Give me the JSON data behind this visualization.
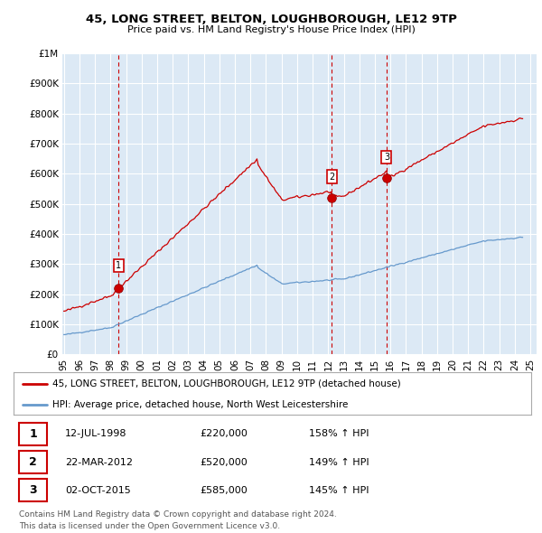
{
  "title1": "45, LONG STREET, BELTON, LOUGHBOROUGH, LE12 9TP",
  "title2": "Price paid vs. HM Land Registry's House Price Index (HPI)",
  "legend_label1": "45, LONG STREET, BELTON, LOUGHBOROUGH, LE12 9TP (detached house)",
  "legend_label2": "HPI: Average price, detached house, North West Leicestershire",
  "footer1": "Contains HM Land Registry data © Crown copyright and database right 2024.",
  "footer2": "This data is licensed under the Open Government Licence v3.0.",
  "transactions": [
    {
      "num": 1,
      "date": "12-JUL-1998",
      "price": 220000,
      "pct": "158%",
      "dir": "↑"
    },
    {
      "num": 2,
      "date": "22-MAR-2012",
      "price": 520000,
      "pct": "149%",
      "dir": "↑"
    },
    {
      "num": 3,
      "date": "02-OCT-2015",
      "price": 585000,
      "pct": "145%",
      "dir": "↑"
    }
  ],
  "transaction_marker_color": "#cc0000",
  "hpi_line_color": "#6699cc",
  "price_line_color": "#cc0000",
  "background_color": "#ffffff",
  "chart_bg_color": "#dce9f5",
  "grid_color": "#ffffff",
  "yticks": [
    0,
    100000,
    200000,
    300000,
    400000,
    500000,
    600000,
    700000,
    800000,
    900000,
    1000000
  ],
  "ylabels": [
    "£0",
    "£100K",
    "£200K",
    "£300K",
    "£400K",
    "£500K",
    "£600K",
    "£700K",
    "£800K",
    "£900K",
    "£1M"
  ],
  "xmin": 1994.9,
  "xmax": 2025.4,
  "ymin": 0,
  "ymax": 1000000
}
